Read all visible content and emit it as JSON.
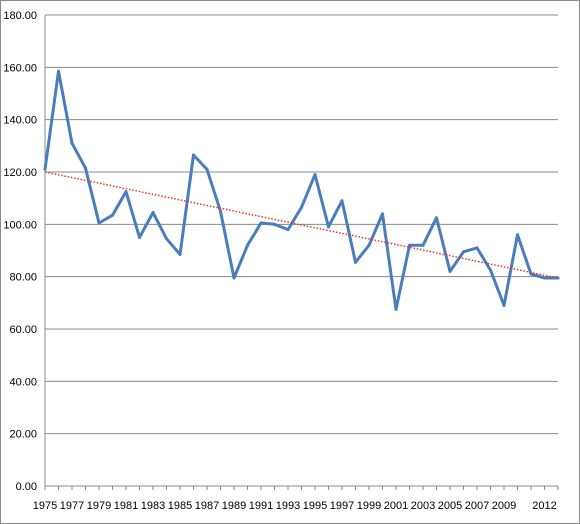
{
  "chart_data": {
    "type": "line",
    "title": "",
    "xlabel": "",
    "ylabel": "",
    "ylim": [
      0,
      180
    ],
    "y_ticks": [
      "0.00",
      "20.00",
      "40.00",
      "60.00",
      "80.00",
      "100.00",
      "120.00",
      "140.00",
      "160.00",
      "180.00"
    ],
    "x_tick_labels": [
      "1975",
      "1977",
      "1979",
      "1981",
      "1983",
      "1985",
      "1987",
      "1989",
      "1991",
      "1993",
      "1995",
      "1997",
      "1999",
      "2001",
      "2003",
      "2005",
      "2007",
      "2009",
      "2012"
    ],
    "grid": "horizontal",
    "legend": "none",
    "x": [
      1975,
      1976,
      1977,
      1978,
      1979,
      1980,
      1981,
      1982,
      1983,
      1984,
      1985,
      1986,
      1987,
      1988,
      1989,
      1990,
      1991,
      1992,
      1993,
      1994,
      1995,
      1996,
      1997,
      1998,
      1999,
      2000,
      2001,
      2002,
      2003,
      2004,
      2005,
      2006,
      2007,
      2008,
      2009,
      2010,
      2011,
      2012,
      2013
    ],
    "series": [
      {
        "values": [
          121.0,
          158.5,
          131.0,
          121.5,
          100.5,
          103.5,
          112.5,
          95.0,
          104.5,
          94.5,
          88.5,
          126.5,
          121.0,
          105.0,
          79.5,
          92.0,
          100.5,
          100.0,
          98.0,
          106.5,
          119.0,
          99.0,
          109.0,
          85.5,
          92.0,
          104.0,
          67.5,
          92.0,
          92.0,
          102.5,
          82.0,
          89.5,
          91.0,
          82.5,
          69.0,
          96.0,
          81.0,
          79.5,
          79.5
        ],
        "color": "#4a7ebb",
        "line_style": "solid"
      },
      {
        "type": "trendline",
        "x": [
          1975,
          2013
        ],
        "values": [
          120.0,
          79.5
        ],
        "color": "#e8281e",
        "line_style": "dotted"
      }
    ]
  }
}
